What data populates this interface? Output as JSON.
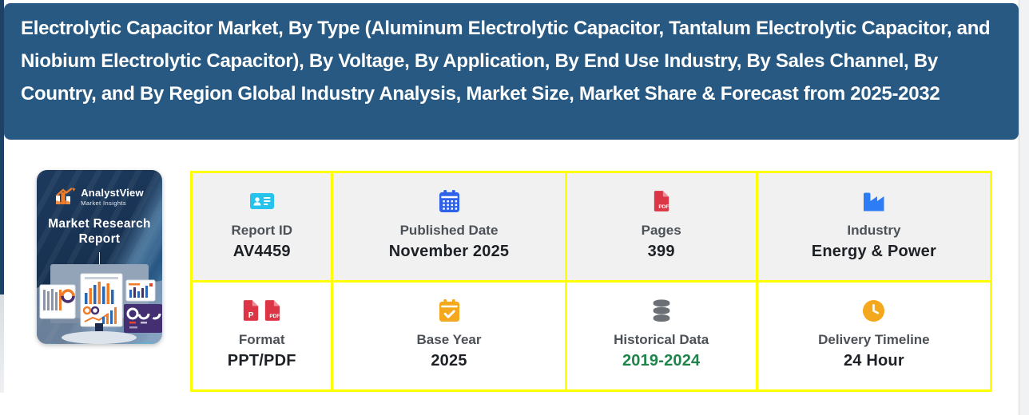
{
  "header": {
    "title": "Electrolytic Capacitor Market, By Type (Aluminum Electrolytic Capacitor, Tantalum Electrolytic Capacitor, and Niobium Electrolytic Capacitor), By Voltage, By Application, By End Use Industry, By Sales Channel, By Country, and By Region Global Industry Analysis, Market Size, Market Share & Forecast from 2025-2032"
  },
  "thumbnail": {
    "brand": "AnalystView",
    "brand_sub": "Market Insights",
    "cover_title": "Market Research Report"
  },
  "report_meta": {
    "cells": [
      {
        "icon": "id-card-icon",
        "label": "Report ID",
        "value": "AV4459",
        "value_color": "#1d2125"
      },
      {
        "icon": "calendar-icon",
        "label": "Published Date",
        "value": "November 2025",
        "value_color": "#1d2125"
      },
      {
        "icon": "pdf-file-icon",
        "label": "Pages",
        "value": "399",
        "value_color": "#1d2125"
      },
      {
        "icon": "factory-icon",
        "label": "Industry",
        "value": "Energy & Power",
        "value_color": "#1d2125"
      },
      {
        "icon": "ppt-pdf-files-icon",
        "label": "Format",
        "value": "PPT/PDF",
        "value_color": "#1d2125"
      },
      {
        "icon": "calendar-check-icon",
        "label": "Base Year",
        "value": "2025",
        "value_color": "#1d2125"
      },
      {
        "icon": "database-icon",
        "label": "Historical Data",
        "value": "2019-2024",
        "value_color": "#1e8449"
      },
      {
        "icon": "clock-icon",
        "label": "Delivery Timeline",
        "value": "24 Hour",
        "value_color": "#1d2125"
      }
    ]
  },
  "colors": {
    "banner_bg": "#275983",
    "grid_border": "#ffff00",
    "row1_bg": "#f1f1f1",
    "row2_bg": "#ffffff",
    "label": "#4c5157",
    "value": "#1d2125",
    "green_value": "#1e8449",
    "id_card": "#26c3ec",
    "calendar_blue": "#2e63e9",
    "pdf_red": "#dc3545",
    "factory_blue": "#2e7bf6",
    "orange": "#f4a81d",
    "database_gray": "#6b7077"
  }
}
